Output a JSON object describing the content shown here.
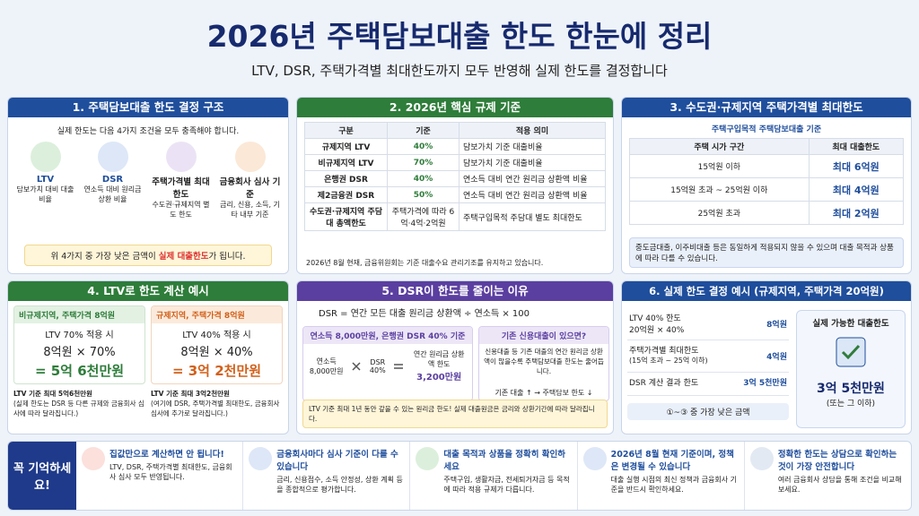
{
  "header": {
    "title": "2026년 주택담보대출 한도 한눈에 정리",
    "subtitle": "LTV, DSR, 주택가격별 최대한도까지 모두 반영해 실제 한도를 결정합니다"
  },
  "structure": {
    "title": "1. 주택담보대출 한도 결정 구조",
    "intro": "실제 한도는 다음 4가지 조건을 모두 충족해야 합니다.",
    "items": [
      {
        "label": "LTV",
        "desc": "담보가치 대비 대출비율"
      },
      {
        "label": "DSR",
        "desc": "연소득 대비 원리금 상환 비율"
      },
      {
        "label": "주택가격별 최대한도",
        "desc": "수도권·규제지역 별도 한도"
      },
      {
        "label": "금융회사 심사 기준",
        "desc": "금리, 신용, 소득, 기타 내부 기준"
      }
    ],
    "note": {
      "before": "위 4가지 중 가장 낮은 금액이 ",
      "highlight": "실제 대출한도",
      "after": "가 됩니다."
    }
  },
  "rules": {
    "title": "2. 2026년 핵심 규제 기준",
    "headers": [
      "구분",
      "기준",
      "적용 의미"
    ],
    "rows": [
      [
        "규제지역 LTV",
        "40%",
        "담보가치 기준 대출비율"
      ],
      [
        "비규제지역 LTV",
        "70%",
        "담보가치 기준 대출비율"
      ],
      [
        "은행권 DSR",
        "40%",
        "연소득 대비 연간 원리금 상환액 비율"
      ],
      [
        "제2금융권 DSR",
        "50%",
        "연소득 대비 연간 원리금 상환액 비율"
      ],
      [
        "수도권·규제지역 주담대 총액한도",
        "주택가격에 따라 6억·4억·2억원",
        "주택구입목적 주담대 별도 최대한도"
      ]
    ],
    "note": "2026년 8월 현재, 금융위원회는 기준 대출수요 관리기조를 유지하고 있습니다."
  },
  "price_limits": {
    "title": "3. 수도권·규제지역 주택가격별 최대한도",
    "subtitle": "주택구입목적 주택담보대출 기준",
    "headers": [
      "주택 시가 구간",
      "최대 대출한도"
    ],
    "rows": [
      [
        "15억원 이하",
        "최대 6억원"
      ],
      [
        "15억원 초과 ~ 25억원 이하",
        "최대 4억원"
      ],
      [
        "25억원 초과",
        "최대 2억원"
      ]
    ],
    "note": "중도금대출, 이주비대출 등은 동일하게 적용되지 않을 수 있으며 대출 목적과 상품에 따라 다를 수 있습니다."
  },
  "ltv_example": {
    "title": "4. LTV로 한도 계산 예시",
    "cases": [
      {
        "heading": "비규제지역, 주택가격 8억원",
        "condition": "LTV 70% 적용 시",
        "formula": "8억원 × 70%",
        "result": "= 5억 6천만원",
        "note": "LTV 기준 최대 5억6천만원",
        "detail": "(실제 한도는 DSR 등 다른 규제와 금융회사 심사에 따라 달라집니다.)"
      },
      {
        "heading": "규제지역, 주택가격 8억원",
        "condition": "LTV 40% 적용 시",
        "formula": "8억원 × 40%",
        "result": "= 3억 2천만원",
        "note": "LTV 기준 최대 3억2천만원",
        "detail": "(여기에 DSR, 주택가격별 최대한도, 금융회사 심사에 추가로 달라집니다.)"
      }
    ]
  },
  "dsr": {
    "title": "5. DSR이 한도를 줄이는 이유",
    "formula": "DSR = 연간 모든 대출 원리금 상환액 ÷ 연소득 × 100",
    "example": {
      "heading": "연소득 8,000만원, 은행권 DSR 40% 기준",
      "income_label": "연소득",
      "income": "8,000만원",
      "rate_label": "DSR",
      "rate": "40%",
      "limit_label": "연간 원리금 상환액 한도",
      "limit": "3,200만원"
    },
    "existing": {
      "heading": "기존 신용대출이 있으면?",
      "text": "신용대출 등 기존 대출의 연간 원리금 상환액이 많을수록 주택담보대출 한도는 줄어듭니다.",
      "trend": "기존 대출 ↑ → 주택담보 한도 ↓"
    },
    "note": "LTV 기준 최대 1년 동안 갚을 수 있는 원리금 한도! 실제 대출원금은 금리와 상환기간에 따라 달라집니다."
  },
  "decision": {
    "title": "6. 실제 한도 결정 예시 (규제지역, 주택가격 20억원)",
    "steps": [
      {
        "label": "LTV 40% 한도",
        "detail": "20억원 × 40%",
        "amount": "8억원"
      },
      {
        "label": "주택가격별 최대한도",
        "detail": "(15억 초과 ~ 25억 이하)",
        "amount": "4억원"
      },
      {
        "label": "DSR 계산 결과 한도",
        "amount": "3억 5천만원"
      }
    ],
    "summary": "①~③ 중 가장 낮은 금액",
    "result": {
      "heading": "실제 가능한 대출한도",
      "amount": "3억 5천만원",
      "caveat": "(또는 그 이하)"
    }
  },
  "reminders": {
    "heading": "꼭 기억하세요!",
    "items": [
      {
        "title": "집값만으로 계산하면 안 됩니다!",
        "text": "LTV, DSR, 주택가격별 최대한도, 금융회사 심사 모두 반영됩니다."
      },
      {
        "title": "금융회사마다 심사 기준이 다를 수 있습니다",
        "text": "금리, 신용점수, 소득 안정성, 상환 계획 등을 종합적으로 평가합니다."
      },
      {
        "title": "대출 목적과 상품을 정확히 확인하세요",
        "text": "주택구입, 생활자금, 전세퇴거자금 등 목적에 따라 적용 규제가 다릅니다."
      },
      {
        "title": "2026년 8월 현재 기준이며, 정책은 변경될 수 있습니다",
        "text": "대출 실행 시점의 최신 정책과 금융회사 기준을 반드시 확인하세요."
      },
      {
        "title": "정확한 한도는 상담으로 확인하는 것이 가장 안전합니다",
        "text": "여러 금융회사 상담을 통해 조건을 비교해 보세요."
      }
    ]
  }
}
